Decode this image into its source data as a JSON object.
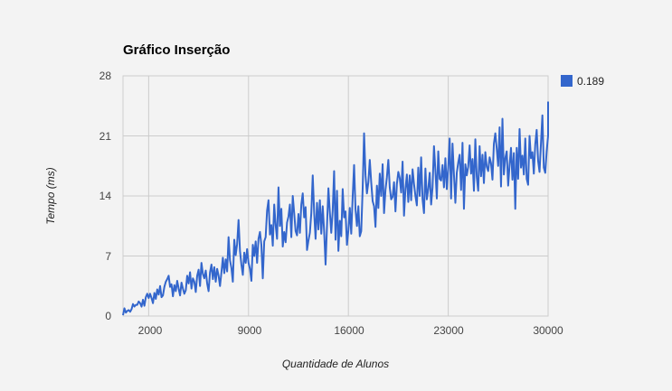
{
  "chart_data": {
    "type": "line",
    "title": "Gráfico Inserção",
    "xlabel": "Quantidade de Alunos",
    "ylabel": "Tempo (ms)",
    "x_ticks": [
      2000,
      9000,
      16000,
      23000,
      30000
    ],
    "y_ticks": [
      0,
      7,
      14,
      21,
      28
    ],
    "xlim": [
      200,
      30000
    ],
    "ylim": [
      0,
      28
    ],
    "grid": true,
    "legend_position": "right",
    "series": [
      {
        "name": "0.189",
        "color": "#3366cc",
        "points": [
          [
            200,
            0.1
          ],
          [
            300,
            0.9
          ],
          [
            400,
            0.4
          ],
          [
            500,
            0.6
          ],
          [
            600,
            0.7
          ],
          [
            700,
            0.5
          ],
          [
            800,
            0.8
          ],
          [
            900,
            1.4
          ],
          [
            1000,
            1.1
          ],
          [
            1100,
            1.3
          ],
          [
            1200,
            1.3
          ],
          [
            1300,
            1.7
          ],
          [
            1400,
            1.5
          ],
          [
            1500,
            1.1
          ],
          [
            1600,
            1.9
          ],
          [
            1700,
            1.2
          ],
          [
            1800,
            2.2
          ],
          [
            1900,
            2.6
          ],
          [
            2000,
            2.1
          ],
          [
            2100,
            2.6
          ],
          [
            2200,
            2.1
          ],
          [
            2300,
            1.5
          ],
          [
            2400,
            2.7
          ],
          [
            2500,
            2.0
          ],
          [
            2600,
            3.1
          ],
          [
            2700,
            2.5
          ],
          [
            2800,
            3.5
          ],
          [
            2900,
            2.2
          ],
          [
            3000,
            2.4
          ],
          [
            3100,
            3.4
          ],
          [
            3200,
            4.0
          ],
          [
            3300,
            4.3
          ],
          [
            3400,
            4.7
          ],
          [
            3500,
            3.4
          ],
          [
            3600,
            3.7
          ],
          [
            3700,
            2.3
          ],
          [
            3800,
            3.6
          ],
          [
            3900,
            2.9
          ],
          [
            4000,
            4.1
          ],
          [
            4100,
            3.2
          ],
          [
            4200,
            2.4
          ],
          [
            4300,
            3.9
          ],
          [
            4400,
            3.2
          ],
          [
            4500,
            2.6
          ],
          [
            4600,
            3.0
          ],
          [
            4700,
            4.7
          ],
          [
            4800,
            3.8
          ],
          [
            4900,
            5.1
          ],
          [
            5000,
            3.2
          ],
          [
            5100,
            4.4
          ],
          [
            5200,
            4.0
          ],
          [
            5300,
            2.8
          ],
          [
            5400,
            4.7
          ],
          [
            5500,
            5.4
          ],
          [
            5600,
            3.5
          ],
          [
            5700,
            6.2
          ],
          [
            5800,
            4.9
          ],
          [
            5900,
            4.4
          ],
          [
            6000,
            5.3
          ],
          [
            6100,
            3.8
          ],
          [
            6200,
            2.9
          ],
          [
            6300,
            5.1
          ],
          [
            6400,
            6.0
          ],
          [
            6500,
            4.3
          ],
          [
            6600,
            5.7
          ],
          [
            6700,
            4.0
          ],
          [
            6800,
            5.5
          ],
          [
            6900,
            4.7
          ],
          [
            7000,
            3.5
          ],
          [
            7100,
            5.1
          ],
          [
            7200,
            6.8
          ],
          [
            7300,
            5.0
          ],
          [
            7400,
            6.6
          ],
          [
            7500,
            5.2
          ],
          [
            7600,
            9.2
          ],
          [
            7700,
            6.5
          ],
          [
            7800,
            5.6
          ],
          [
            7900,
            4.0
          ],
          [
            8000,
            8.9
          ],
          [
            8100,
            7.1
          ],
          [
            8200,
            8.4
          ],
          [
            8300,
            11.2
          ],
          [
            8400,
            7.6
          ],
          [
            8500,
            6.0
          ],
          [
            8600,
            4.8
          ],
          [
            8700,
            7.4
          ],
          [
            8800,
            6.2
          ],
          [
            8900,
            7.8
          ],
          [
            9000,
            6.2
          ],
          [
            9100,
            5.5
          ],
          [
            9200,
            4.1
          ],
          [
            9300,
            8.3
          ],
          [
            9400,
            7.0
          ],
          [
            9500,
            8.7
          ],
          [
            9600,
            6.2
          ],
          [
            9700,
            9.0
          ],
          [
            9800,
            9.8
          ],
          [
            9900,
            8.3
          ],
          [
            10000,
            4.4
          ],
          [
            10100,
            8.7
          ],
          [
            10200,
            9.2
          ],
          [
            10300,
            12.3
          ],
          [
            10400,
            13.5
          ],
          [
            10500,
            9.5
          ],
          [
            10600,
            10.6
          ],
          [
            10700,
            8.2
          ],
          [
            10800,
            13.0
          ],
          [
            10900,
            10.6
          ],
          [
            11000,
            9.0
          ],
          [
            11100,
            15.0
          ],
          [
            11200,
            10.5
          ],
          [
            11300,
            12.5
          ],
          [
            11400,
            8.1
          ],
          [
            11500,
            9.8
          ],
          [
            11600,
            8.6
          ],
          [
            11700,
            10.9
          ],
          [
            11800,
            11.6
          ],
          [
            11900,
            13.0
          ],
          [
            12000,
            9.2
          ],
          [
            12100,
            14.0
          ],
          [
            12200,
            12.0
          ],
          [
            12300,
            9.9
          ],
          [
            12400,
            9.4
          ],
          [
            12500,
            11.9
          ],
          [
            12600,
            9.7
          ],
          [
            12700,
            13.0
          ],
          [
            12800,
            14.3
          ],
          [
            12900,
            11.5
          ],
          [
            13000,
            12.7
          ],
          [
            13100,
            7.7
          ],
          [
            13200,
            8.8
          ],
          [
            13300,
            9.7
          ],
          [
            13400,
            12.0
          ],
          [
            13500,
            16.4
          ],
          [
            13600,
            12.1
          ],
          [
            13700,
            9.0
          ],
          [
            13800,
            13.2
          ],
          [
            13900,
            10.1
          ],
          [
            14000,
            13.5
          ],
          [
            14100,
            9.6
          ],
          [
            14200,
            12.8
          ],
          [
            14300,
            9.9
          ],
          [
            14400,
            6.0
          ],
          [
            14500,
            10.5
          ],
          [
            14600,
            14.9
          ],
          [
            14700,
            12.1
          ],
          [
            14800,
            9.7
          ],
          [
            14900,
            12.3
          ],
          [
            15000,
            16.9
          ],
          [
            15100,
            8.9
          ],
          [
            15200,
            14.6
          ],
          [
            15300,
            7.6
          ],
          [
            15400,
            11.1
          ],
          [
            15500,
            9.3
          ],
          [
            15600,
            14.8
          ],
          [
            15700,
            11.5
          ],
          [
            15800,
            12.2
          ],
          [
            15900,
            8.3
          ],
          [
            16000,
            10.0
          ],
          [
            16100,
            12.6
          ],
          [
            16200,
            9.6
          ],
          [
            16300,
            13.9
          ],
          [
            16400,
            17.6
          ],
          [
            16500,
            12.4
          ],
          [
            16600,
            10.5
          ],
          [
            16700,
            12.8
          ],
          [
            16800,
            9.3
          ],
          [
            16900,
            9.9
          ],
          [
            17000,
            14.8
          ],
          [
            17100,
            21.3
          ],
          [
            17200,
            16.4
          ],
          [
            17300,
            14.3
          ],
          [
            17400,
            15.6
          ],
          [
            17500,
            18.2
          ],
          [
            17600,
            15.6
          ],
          [
            17700,
            13.4
          ],
          [
            17800,
            12.8
          ],
          [
            17900,
            10.4
          ],
          [
            18000,
            15.2
          ],
          [
            18100,
            12.6
          ],
          [
            18200,
            16.6
          ],
          [
            18300,
            14.0
          ],
          [
            18400,
            17.7
          ],
          [
            18500,
            12.0
          ],
          [
            18600,
            14.7
          ],
          [
            18700,
            16.2
          ],
          [
            18800,
            18.2
          ],
          [
            18900,
            15.0
          ],
          [
            19000,
            13.6
          ],
          [
            19100,
            13.9
          ],
          [
            19200,
            15.6
          ],
          [
            19300,
            12.2
          ],
          [
            19400,
            15.4
          ],
          [
            19500,
            16.8
          ],
          [
            19600,
            16.1
          ],
          [
            19700,
            14.4
          ],
          [
            19800,
            18.0
          ],
          [
            19900,
            11.7
          ],
          [
            20000,
            14.8
          ],
          [
            20100,
            16.5
          ],
          [
            20200,
            13.3
          ],
          [
            20300,
            16.4
          ],
          [
            20400,
            13.5
          ],
          [
            20500,
            17.1
          ],
          [
            20600,
            15.4
          ],
          [
            20700,
            14.0
          ],
          [
            20800,
            12.9
          ],
          [
            20900,
            17.3
          ],
          [
            21000,
            14.0
          ],
          [
            21100,
            18.5
          ],
          [
            21200,
            13.6
          ],
          [
            21300,
            12.0
          ],
          [
            21400,
            17.2
          ],
          [
            21500,
            13.6
          ],
          [
            21600,
            14.8
          ],
          [
            21700,
            16.7
          ],
          [
            21800,
            13.0
          ],
          [
            21900,
            15.0
          ],
          [
            22000,
            19.8
          ],
          [
            22100,
            17.0
          ],
          [
            22200,
            13.7
          ],
          [
            22300,
            19.2
          ],
          [
            22400,
            16.0
          ],
          [
            22500,
            15.8
          ],
          [
            22600,
            17.6
          ],
          [
            22700,
            15.0
          ],
          [
            22800,
            18.4
          ],
          [
            22900,
            14.8
          ],
          [
            23000,
            17.3
          ],
          [
            23100,
            20.7
          ],
          [
            23200,
            13.7
          ],
          [
            23300,
            20.1
          ],
          [
            23400,
            16.5
          ],
          [
            23500,
            13.2
          ],
          [
            23600,
            16.7
          ],
          [
            23700,
            17.9
          ],
          [
            23800,
            18.8
          ],
          [
            23900,
            14.7
          ],
          [
            24000,
            20.2
          ],
          [
            24100,
            12.5
          ],
          [
            24200,
            17.7
          ],
          [
            24300,
            16.4
          ],
          [
            24400,
            17.4
          ],
          [
            24500,
            19.9
          ],
          [
            24600,
            16.6
          ],
          [
            24700,
            18.3
          ],
          [
            24800,
            14.6
          ],
          [
            24900,
            20.6
          ],
          [
            25000,
            16.2
          ],
          [
            25100,
            14.6
          ],
          [
            25200,
            19.8
          ],
          [
            25300,
            16.3
          ],
          [
            25400,
            18.8
          ],
          [
            25500,
            15.5
          ],
          [
            25600,
            19.1
          ],
          [
            25700,
            17.4
          ],
          [
            25800,
            16.9
          ],
          [
            25900,
            18.5
          ],
          [
            26000,
            17.8
          ],
          [
            26100,
            15.9
          ],
          [
            26200,
            20.1
          ],
          [
            26300,
            21.3
          ],
          [
            26400,
            19.5
          ],
          [
            26500,
            17.5
          ],
          [
            26600,
            22.0
          ],
          [
            26700,
            15.1
          ],
          [
            26800,
            23.0
          ],
          [
            26900,
            16.5
          ],
          [
            27000,
            18.4
          ],
          [
            27100,
            19.2
          ],
          [
            27200,
            15.2
          ],
          [
            27300,
            17.6
          ],
          [
            27400,
            19.6
          ],
          [
            27500,
            15.9
          ],
          [
            27600,
            19.0
          ],
          [
            27700,
            12.5
          ],
          [
            27800,
            19.6
          ],
          [
            27900,
            16.0
          ],
          [
            28000,
            21.8
          ],
          [
            28100,
            17.3
          ],
          [
            28200,
            18.7
          ],
          [
            28300,
            16.5
          ],
          [
            28400,
            20.7
          ],
          [
            28500,
            16.0
          ],
          [
            28600,
            15.3
          ],
          [
            28700,
            21.0
          ],
          [
            28800,
            18.4
          ],
          [
            28900,
            19.1
          ],
          [
            29000,
            16.6
          ],
          [
            29100,
            20.0
          ],
          [
            29200,
            21.7
          ],
          [
            29300,
            18.1
          ],
          [
            29400,
            16.8
          ],
          [
            29500,
            20.1
          ],
          [
            29600,
            23.4
          ],
          [
            29700,
            17.3
          ],
          [
            29800,
            16.7
          ],
          [
            29900,
            19.2
          ],
          [
            30000,
            21.0
          ],
          [
            30000,
            25.0
          ]
        ]
      }
    ]
  }
}
